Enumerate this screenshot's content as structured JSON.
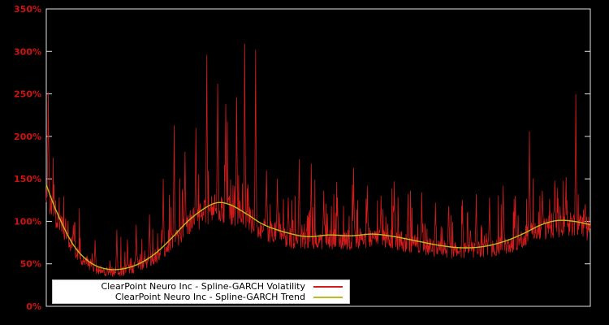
{
  "figure": {
    "background": "#000000",
    "frame_color": "#e0e0e0",
    "tick_label_color": "#cf1212",
    "legend_background": "#ffffff",
    "legend_text_color": "#000000"
  },
  "chart_data": {
    "type": "line",
    "title": "",
    "ylim": [
      0,
      350
    ],
    "grid": false,
    "legend_position": "bottom-center-inside",
    "yticks": {
      "labels": [
        "0%",
        "50%",
        "100%",
        "150%",
        "200%",
        "250%",
        "300%",
        "350%"
      ],
      "values": [
        0,
        50,
        100,
        150,
        200,
        250,
        300,
        350
      ]
    },
    "x_axis": {
      "tick_labels_visible": false
    },
    "series": [
      {
        "name": "ClearPoint Neuro Inc - Spline-GARCH Volatility",
        "color": "#d41c1c",
        "style": "noisy"
      },
      {
        "name": "ClearPoint Neuro Inc - Spline-GARCH Trend",
        "color": "#bcbd22",
        "style": "smooth"
      }
    ],
    "trend_points_pct": [
      [
        0.0,
        143
      ],
      [
        0.02,
        110
      ],
      [
        0.05,
        72
      ],
      [
        0.08,
        52
      ],
      [
        0.11,
        44
      ],
      [
        0.14,
        44
      ],
      [
        0.17,
        50
      ],
      [
        0.2,
        62
      ],
      [
        0.23,
        80
      ],
      [
        0.26,
        100
      ],
      [
        0.29,
        115
      ],
      [
        0.315,
        122
      ],
      [
        0.34,
        119
      ],
      [
        0.37,
        108
      ],
      [
        0.4,
        96
      ],
      [
        0.44,
        87
      ],
      [
        0.48,
        82
      ],
      [
        0.52,
        84
      ],
      [
        0.56,
        83
      ],
      [
        0.6,
        85
      ],
      [
        0.64,
        82
      ],
      [
        0.68,
        77
      ],
      [
        0.72,
        72
      ],
      [
        0.76,
        69
      ],
      [
        0.8,
        70
      ],
      [
        0.84,
        76
      ],
      [
        0.875,
        85
      ],
      [
        0.91,
        96
      ],
      [
        0.94,
        101
      ],
      [
        0.97,
        100
      ],
      [
        1.0,
        96
      ]
    ],
    "volatility_spikes_pct": [
      [
        0.004,
        252
      ],
      [
        0.05,
        96
      ],
      [
        0.09,
        78
      ],
      [
        0.13,
        90
      ],
      [
        0.165,
        96
      ],
      [
        0.19,
        108
      ],
      [
        0.215,
        150
      ],
      [
        0.235,
        213
      ],
      [
        0.255,
        182
      ],
      [
        0.275,
        210
      ],
      [
        0.295,
        296
      ],
      [
        0.315,
        262
      ],
      [
        0.33,
        238
      ],
      [
        0.35,
        246
      ],
      [
        0.365,
        309
      ],
      [
        0.385,
        302
      ],
      [
        0.405,
        160
      ],
      [
        0.425,
        150
      ],
      [
        0.445,
        128
      ],
      [
        0.465,
        173
      ],
      [
        0.487,
        168
      ],
      [
        0.51,
        136
      ],
      [
        0.535,
        128
      ],
      [
        0.565,
        163
      ],
      [
        0.59,
        142
      ],
      [
        0.615,
        130
      ],
      [
        0.64,
        147
      ],
      [
        0.665,
        132
      ],
      [
        0.69,
        128
      ],
      [
        0.715,
        122
      ],
      [
        0.74,
        118
      ],
      [
        0.765,
        125
      ],
      [
        0.79,
        132
      ],
      [
        0.815,
        128
      ],
      [
        0.84,
        142
      ],
      [
        0.862,
        130
      ],
      [
        0.888,
        206
      ],
      [
        0.912,
        136
      ],
      [
        0.935,
        148
      ],
      [
        0.955,
        130
      ],
      [
        0.973,
        250
      ],
      [
        0.99,
        120
      ]
    ],
    "noise": {
      "seed": 1337,
      "points": 1350,
      "base": 0.8,
      "band": 0.3,
      "spike_prob": 0.1,
      "spike_min": 1.15,
      "spike_range": 0.55
    }
  }
}
